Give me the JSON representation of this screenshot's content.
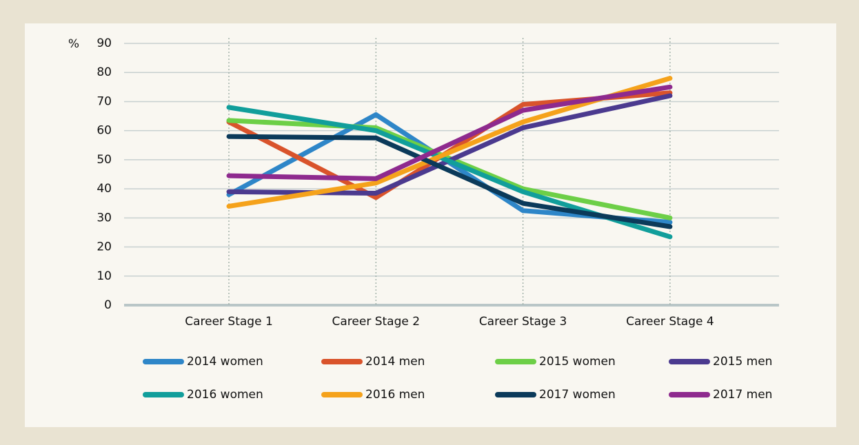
{
  "chart_data": {
    "type": "line",
    "ylabel": "%",
    "categories": [
      "Career Stage 1",
      "Career Stage 2",
      "Career Stage 3",
      "Career Stage 4"
    ],
    "series": [
      {
        "name": "2014 women",
        "color": "#2e86c8",
        "values": [
          38,
          65.5,
          32.5,
          28.5
        ]
      },
      {
        "name": "2014 men",
        "color": "#d9532b",
        "values": [
          63,
          37,
          69,
          73
        ]
      },
      {
        "name": "2015 women",
        "color": "#6dcf47",
        "values": [
          63.5,
          61,
          40,
          30
        ]
      },
      {
        "name": "2015 men",
        "color": "#4b3a8f",
        "values": [
          39,
          38.5,
          61,
          72
        ]
      },
      {
        "name": "2016 women",
        "color": "#119e9b",
        "values": [
          68,
          60,
          39,
          23.5
        ]
      },
      {
        "name": "2016 men",
        "color": "#f5a21b",
        "values": [
          34,
          42,
          63,
          78
        ]
      },
      {
        "name": "2017 women",
        "color": "#0b3a5a",
        "values": [
          58,
          57.5,
          35,
          27
        ]
      },
      {
        "name": "2017 men",
        "color": "#8e2a8e",
        "values": [
          44.5,
          43.5,
          67,
          75
        ]
      }
    ],
    "ylim": [
      0,
      90
    ],
    "yticks": [
      0,
      10,
      20,
      30,
      40,
      50,
      60,
      70,
      80,
      90
    ],
    "grid": true,
    "legend": "bottom"
  }
}
